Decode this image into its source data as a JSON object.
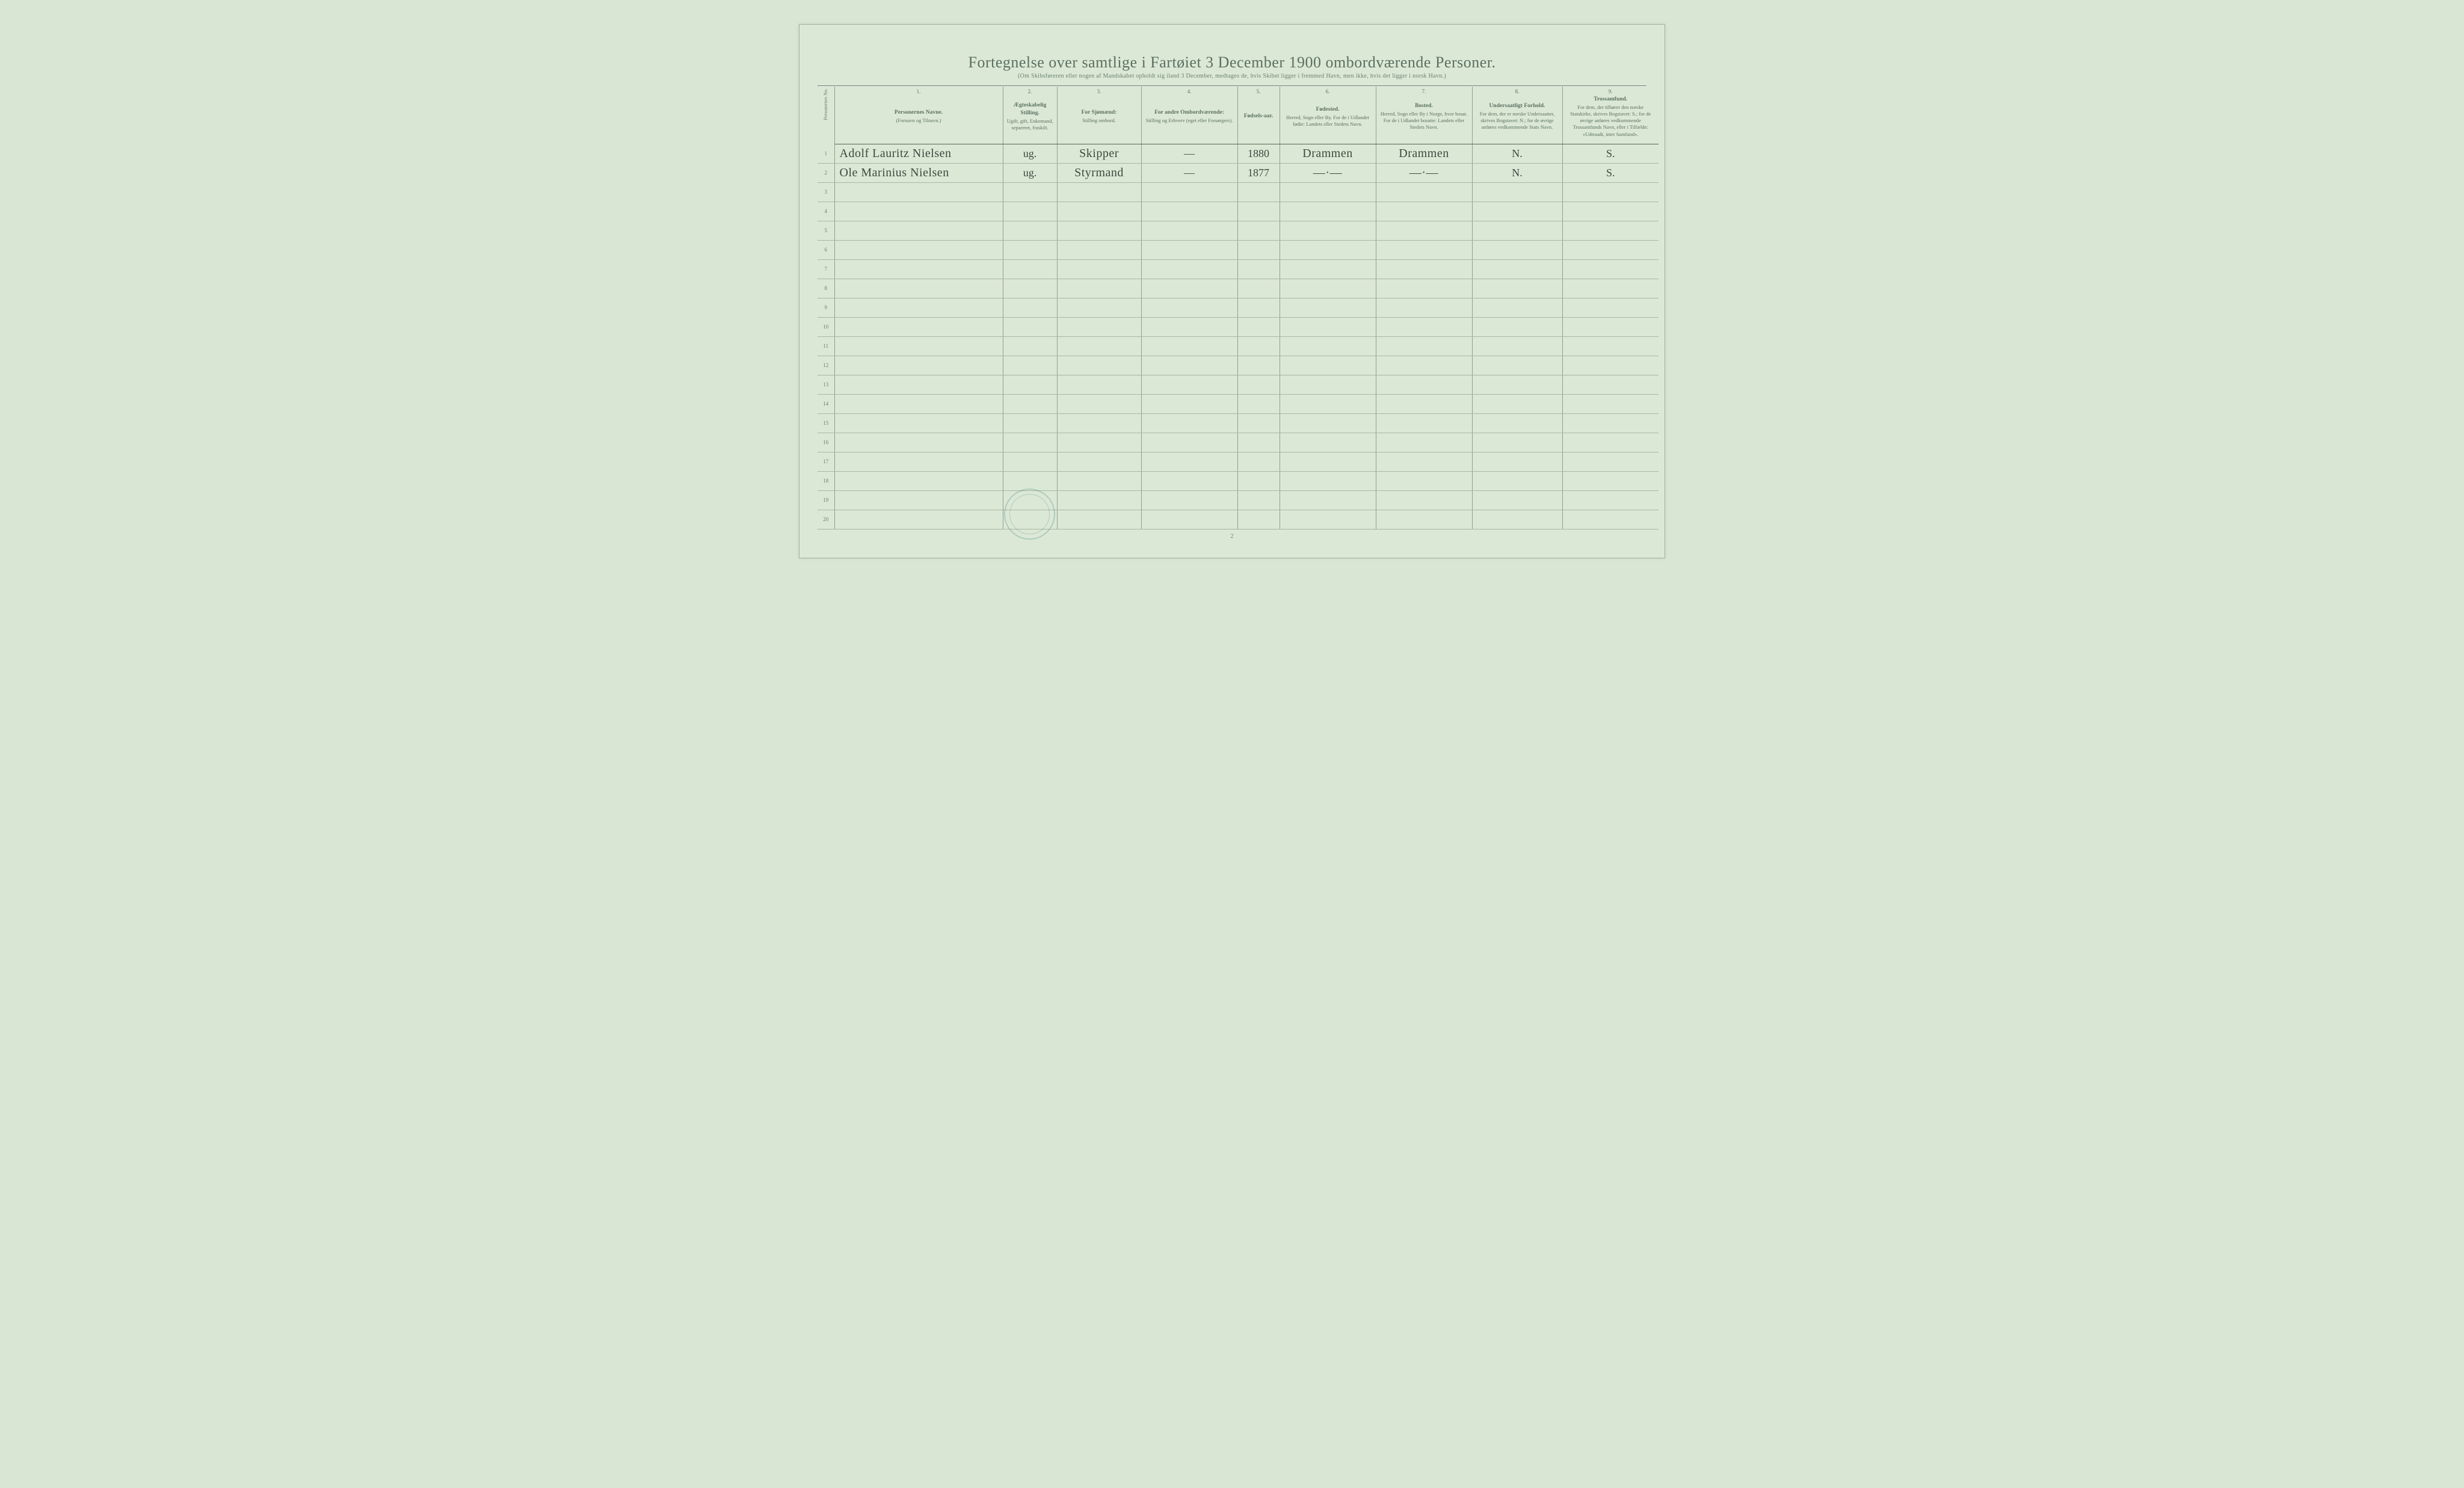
{
  "title": "Fortegnelse over samtlige i Fartøiet 3 December 1900 ombordværende Personer.",
  "subtitle": "(Om Skibsføreren eller nogen af Mandskabet opholdt sig iland 3 December, medtages de, hvis Skibet ligger i fremmed Havn, men ikke, hvis det ligger i norsk Havn.)",
  "footer_page": "2",
  "columns": {
    "rownum_label": "Personernes No.",
    "c1": {
      "num": "1.",
      "main": "Personernes Navne.",
      "sub": "(Fornavn og Tilnavn.)"
    },
    "c2": {
      "num": "2.",
      "main": "Ægteskabelig Stilling.",
      "sub": "Ugift, gift, Enkemand, separeret, fraskilt."
    },
    "c3": {
      "num": "3.",
      "main": "For Sjømænd:",
      "sub": "Stilling ombord."
    },
    "c4": {
      "num": "4.",
      "main": "For andre Ombordværende:",
      "sub": "Stilling og Erhverv (eget eller Forsørgers)."
    },
    "c5": {
      "num": "5.",
      "main": "Fødsels-aar.",
      "sub": ""
    },
    "c6": {
      "num": "6.",
      "main": "Fødested.",
      "sub": "Herred, Sogn eller By. For de i Udlandet fødte: Landets eller Stedets Navn."
    },
    "c7": {
      "num": "7.",
      "main": "Bosted.",
      "sub": "Herred, Sogn eller By i Norge, hvor bosat. For de i Udlandet bosatte: Landets eller Stedets Navn."
    },
    "c8": {
      "num": "8.",
      "main": "Undersaatligt Forhold.",
      "sub": "For dem, der er norske Undersaatter, skrives Bogstavet: N.; for de øvrige anføres vedkommende Stats Navn."
    },
    "c9": {
      "num": "9.",
      "main": "Trossamfund.",
      "sub": "For dem, der tilhører den norske Statskirke, skrives Bogstavet: S.; for de øvrige anføres vedkommende Trossamfunds Navn, eller i Tilfælde: «Udtraadt, intet Samfund»."
    }
  },
  "rows": [
    {
      "n": "1",
      "name": "Adolf Lauritz Nielsen",
      "civ": "ug.",
      "sea": "Skipper",
      "other": "—",
      "year": "1880",
      "birth": "Drammen",
      "res": "Drammen",
      "subj": "N.",
      "rel": "S."
    },
    {
      "n": "2",
      "name": "Ole Marinius Nielsen",
      "civ": "ug.",
      "sea": "Styrmand",
      "other": "—",
      "year": "1877",
      "birth": "—·—",
      "res": "—·—",
      "subj": "N.",
      "rel": "S."
    },
    {
      "n": "3"
    },
    {
      "n": "4"
    },
    {
      "n": "5"
    },
    {
      "n": "6"
    },
    {
      "n": "7"
    },
    {
      "n": "8"
    },
    {
      "n": "9"
    },
    {
      "n": "10"
    },
    {
      "n": "11"
    },
    {
      "n": "12"
    },
    {
      "n": "13"
    },
    {
      "n": "14"
    },
    {
      "n": "15"
    },
    {
      "n": "16"
    },
    {
      "n": "17"
    },
    {
      "n": "18"
    },
    {
      "n": "19"
    },
    {
      "n": "20"
    }
  ],
  "colors": {
    "page_bg": "#dce8d6",
    "text": "#5a7060",
    "line": "#8ca088",
    "ink": "#3a4a3e",
    "stamp": "#4a8b8a"
  }
}
